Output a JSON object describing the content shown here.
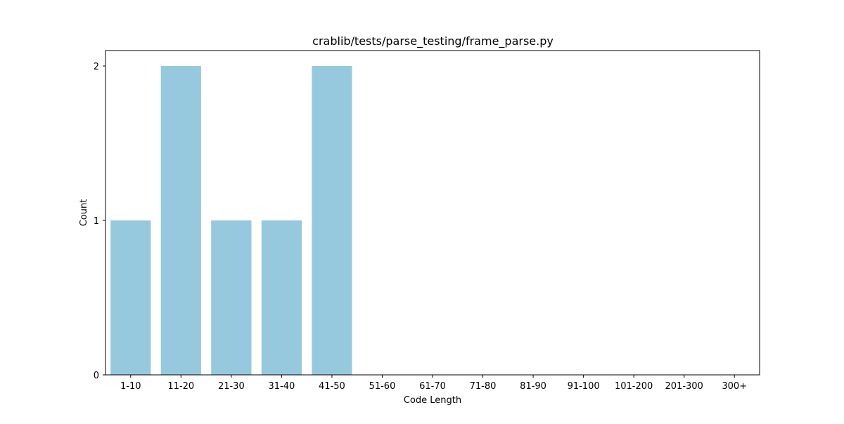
{
  "chart_data": {
    "type": "bar",
    "title": "crablib/tests/parse_testing/frame_parse.py",
    "xlabel": "Code Length",
    "ylabel": "Count",
    "categories": [
      "1-10",
      "11-20",
      "21-30",
      "31-40",
      "41-50",
      "51-60",
      "61-70",
      "71-80",
      "81-90",
      "91-100",
      "101-200",
      "201-300",
      "300+"
    ],
    "values": [
      1,
      2,
      1,
      1,
      2,
      0,
      0,
      0,
      0,
      0,
      0,
      0,
      0
    ],
    "ylim": [
      0,
      2.1
    ],
    "yticks": [
      0,
      1,
      2
    ],
    "grid": false,
    "bar_color": "#96c9de"
  }
}
